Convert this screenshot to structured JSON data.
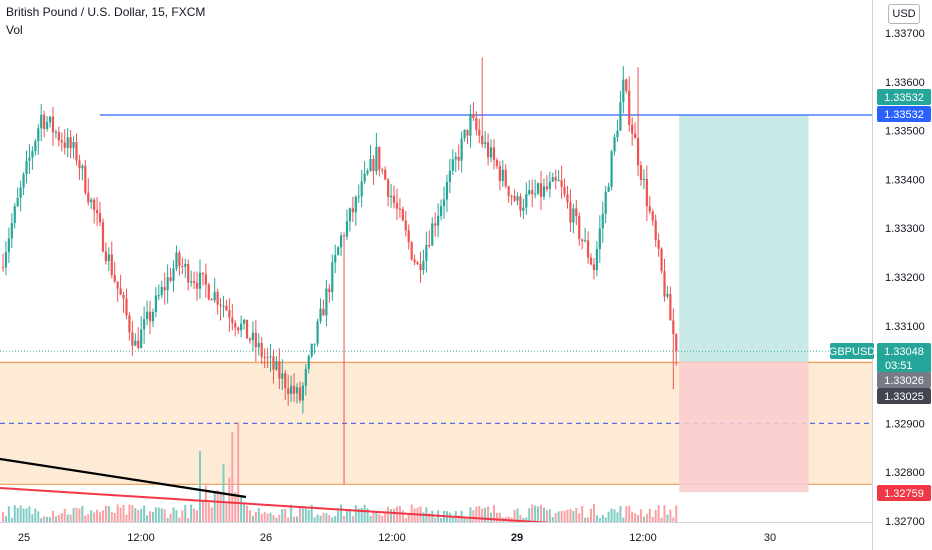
{
  "header": {
    "symbol_line": "British Pound / U.S. Dollar, 15, FXCM",
    "volume_label": "Vol"
  },
  "currency_button": "USD",
  "symbol_tag": "GBPUSD",
  "countdown": "03:51",
  "colors": {
    "up": "#26a69a",
    "down": "#ef5350",
    "volume_up": "#80cbc4",
    "volume_down": "#faa1a4",
    "resistance_line": "#2962ff",
    "target_zone": "#b2dfdb",
    "stop_zone": "#fccbcd",
    "demand_zone": "#fdebd6",
    "zone_border": "#f0a868",
    "trend_black": "#000000",
    "trend_red": "#f23645",
    "label_current": "#26a69a",
    "label_gray": "#787b86",
    "label_dark": "#434651",
    "label_blue": "#2962ff",
    "label_red": "#f23645"
  },
  "chart_data": {
    "type": "candlestick",
    "title": "British Pound / U.S. Dollar, 15, FXCM",
    "y_axis_ticks": [
      "1.33700",
      "1.33600",
      "1.33500",
      "1.33400",
      "1.33300",
      "1.33200",
      "1.33100",
      "1.32900",
      "1.32800",
      "1.32700"
    ],
    "x_axis_ticks": [
      "25",
      "12:00",
      "26",
      "12:00",
      "29",
      "12:00",
      "30"
    ],
    "bold_x_ticks": [
      "29"
    ],
    "ylim": [
      1.327,
      1.3374
    ],
    "price_labels": [
      {
        "value": "1.33532",
        "style": "target"
      },
      {
        "value": "1.33532",
        "style": "resistance"
      },
      {
        "value": "1.33048",
        "style": "current"
      },
      {
        "value": "1.33026",
        "style": "gray"
      },
      {
        "value": "1.33025",
        "style": "dark"
      },
      {
        "value": "1.32759",
        "style": "stop"
      }
    ],
    "levels": {
      "resistance": 1.33532,
      "zone_top": 1.33025,
      "zone_mid": 1.329,
      "zone_bottom": 1.32775,
      "entry": 1.33026,
      "target": 1.33532,
      "stop": 1.32759
    },
    "ohlc_segments": [
      {
        "from": 1.3322,
        "to": 1.3353,
        "bars": 14,
        "x_from": 0,
        "x_to": 14
      },
      {
        "from": 1.3353,
        "to": 1.3345,
        "bars": 12,
        "x_from": 14,
        "x_to": 26
      },
      {
        "from": 1.3345,
        "to": 1.3306,
        "bars": 20,
        "x_from": 26,
        "x_to": 46
      },
      {
        "from": 1.3306,
        "to": 1.3323,
        "bars": 14,
        "x_from": 46,
        "x_to": 60
      },
      {
        "from": 1.3323,
        "to": 1.3316,
        "bars": 14,
        "x_from": 60,
        "x_to": 74
      },
      {
        "from": 1.3316,
        "to": 1.3302,
        "bars": 18,
        "x_from": 74,
        "x_to": 92
      },
      {
        "from": 1.3302,
        "to": 1.3295,
        "bars": 10,
        "x_from": 92,
        "x_to": 102
      },
      {
        "from": 1.3295,
        "to": 1.3328,
        "bars": 14,
        "x_from": 102,
        "x_to": 116
      },
      {
        "from": 1.3328,
        "to": 1.3345,
        "bars": 12,
        "x_from": 116,
        "x_to": 128
      },
      {
        "from": 1.3345,
        "to": 1.3322,
        "bars": 14,
        "x_from": 128,
        "x_to": 142
      },
      {
        "from": 1.3322,
        "to": 1.3352,
        "bars": 18,
        "x_from": 142,
        "x_to": 160
      },
      {
        "from": 1.3352,
        "to": 1.3335,
        "bars": 16,
        "x_from": 160,
        "x_to": 176
      },
      {
        "from": 1.3335,
        "to": 1.3339,
        "bars": 14,
        "x_from": 176,
        "x_to": 190
      },
      {
        "from": 1.3339,
        "to": 1.3322,
        "bars": 12,
        "x_from": 190,
        "x_to": 202
      },
      {
        "from": 1.3322,
        "to": 1.3359,
        "bars": 10,
        "x_from": 202,
        "x_to": 212
      },
      {
        "from": 1.3359,
        "to": 1.3336,
        "bars": 8,
        "x_from": 212,
        "x_to": 220
      },
      {
        "from": 1.3336,
        "to": 1.3305,
        "bars": 10,
        "x_from": 220,
        "x_to": 230
      }
    ],
    "candle_count": 230,
    "trade_box": {
      "start_index": 230,
      "end_index": 274
    },
    "volume": "shown as bottom histogram",
    "grid": false
  }
}
